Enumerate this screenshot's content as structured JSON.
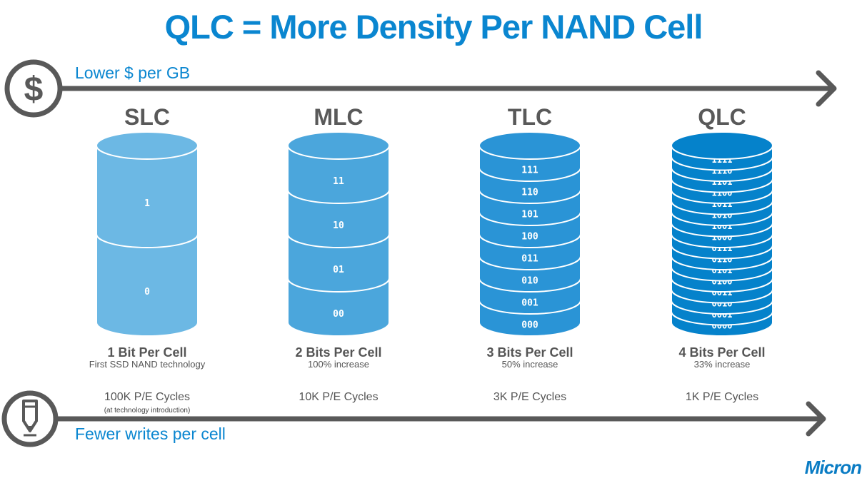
{
  "title": "QLC = More Density Per NAND Cell",
  "top_axis": {
    "label": "Lower $ per GB",
    "icon": "dollar-icon"
  },
  "bottom_axis": {
    "label": "Fewer writes per cell",
    "icon": "pencil-icon"
  },
  "columns": [
    {
      "name": "SLC",
      "bits": "1 Bit Per Cell",
      "sub": "First SSD NAND technology",
      "cycles": "100K P/E Cycles",
      "note": "(at technology introduction)",
      "color": "#6cb8e4",
      "levels": [
        "1",
        "0"
      ]
    },
    {
      "name": "MLC",
      "bits": "2 Bits Per Cell",
      "sub": "100% increase",
      "cycles": "10K P/E Cycles",
      "color": "#4ba6dc",
      "levels": [
        "11",
        "10",
        "01",
        "00"
      ]
    },
    {
      "name": "TLC",
      "bits": "3 Bits Per Cell",
      "sub": "50% increase",
      "cycles": "3K P/E Cycles",
      "color": "#2a94d6",
      "levels": [
        "111",
        "110",
        "101",
        "100",
        "011",
        "010",
        "001",
        "000"
      ]
    },
    {
      "name": "QLC",
      "bits": "4 Bits Per Cell",
      "sub": "33% increase",
      "cycles": "1K P/E Cycles",
      "color": "#0582cb",
      "levels": [
        "1111",
        "1110",
        "1101",
        "1100",
        "1011",
        "1010",
        "1001",
        "1000",
        "0111",
        "0110",
        "0101",
        "0100",
        "0011",
        "0010",
        "0001",
        "0000"
      ]
    }
  ],
  "logo": "Micron",
  "colors": {
    "accent": "#0a86d0",
    "axis": "#595959"
  }
}
